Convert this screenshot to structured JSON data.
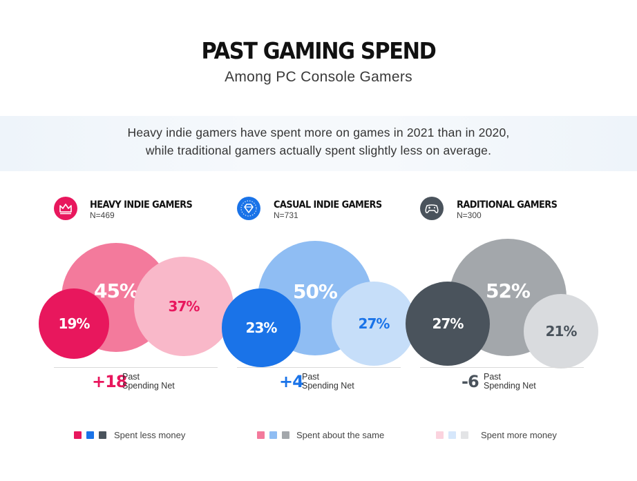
{
  "header": {
    "title": "PAST GAMING SPEND",
    "subtitle": "Among PC Console Gamers"
  },
  "summary": {
    "line1": "Heavy indie gamers have spent more on games in 2021 than in 2020,",
    "line2": "while traditional gamers actually spent slightly less on average."
  },
  "chart_data": {
    "type": "bubble",
    "title": "PAST GAMING SPEND",
    "subtitle": "Among PC Console Gamers",
    "categories": [
      "Spent less money",
      "Spent about the same",
      "Spent more money"
    ],
    "groups": [
      {
        "name": "HEAVY INDIE GAMERS",
        "n": "N=469",
        "icon": "crown-icon",
        "accent": "#e8175d",
        "values": [
          19,
          45,
          37
        ],
        "labels": [
          "19%",
          "45%",
          "37%"
        ],
        "colors": [
          "#e8175d",
          "#f37a9c",
          "#f9b8c9"
        ],
        "text_colors": [
          "#ffffff",
          "#ffffff",
          "#e8175d"
        ],
        "net_value": "+18",
        "net_color": "#e8175d"
      },
      {
        "name": "CASUAL INDIE GAMERS",
        "n": "N=731",
        "icon": "diamond-icon",
        "accent": "#1a73e8",
        "values": [
          23,
          50,
          27
        ],
        "labels": [
          "23%",
          "50%",
          "27%"
        ],
        "colors": [
          "#1a73e8",
          "#8fbdf3",
          "#c6def9"
        ],
        "text_colors": [
          "#ffffff",
          "#ffffff",
          "#1a73e8"
        ],
        "net_value": "+4",
        "net_color": "#1a73e8"
      },
      {
        "name": "RADITIONAL GAMERS",
        "n": "N=300",
        "icon": "gamepad-icon",
        "accent": "#4a535c",
        "values": [
          27,
          52,
          21
        ],
        "labels": [
          "27%",
          "52%",
          "21%"
        ],
        "colors": [
          "#4a535c",
          "#a3a7ab",
          "#d9dbde"
        ],
        "text_colors": [
          "#ffffff",
          "#ffffff",
          "#4a535c"
        ],
        "net_value": "-6",
        "net_color": "#4a535c"
      }
    ],
    "net_label_line1": "Past",
    "net_label_line2": "Spending Net",
    "legend": [
      {
        "label": "Spent less money",
        "colors": [
          "#e8175d",
          "#1a73e8",
          "#4a535c"
        ]
      },
      {
        "label": "Spent about the same",
        "colors": [
          "#f37a9c",
          "#8fbdf3",
          "#a3a7ab"
        ]
      },
      {
        "label": "Spent more money",
        "colors": [
          "#fbd3de",
          "#d6e7fb",
          "#e3e4e6"
        ]
      }
    ]
  }
}
